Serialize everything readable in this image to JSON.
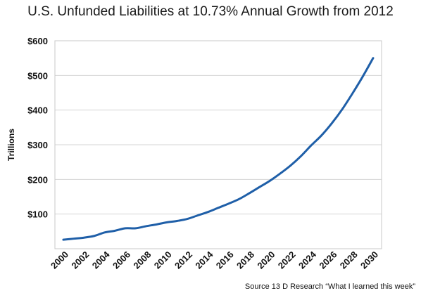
{
  "chart_data": {
    "type": "line",
    "title": "U.S. Unfunded Liabilities at 10.73% Annual Growth from 2012",
    "xlabel": "",
    "ylabel": "Trillions",
    "source": "Source 13 D Research “What I learned this week”",
    "x_ticks": [
      "2000",
      "2002",
      "2004",
      "2006",
      "2008",
      "2010",
      "2012",
      "2014",
      "2016",
      "2018",
      "2020",
      "2022",
      "2024",
      "2026",
      "2028",
      "2030"
    ],
    "y_ticks": [
      "$600",
      "$500",
      "$400",
      "$300",
      "$200",
      "$100"
    ],
    "xlim": [
      1999,
      2031
    ],
    "ylim": [
      0,
      600
    ],
    "grid": "horizontal",
    "series": [
      {
        "color": "#1f5fa8",
        "x": [
          2000,
          2001,
          2002,
          2003,
          2004,
          2005,
          2006,
          2007,
          2008,
          2009,
          2010,
          2011,
          2012,
          2013,
          2014,
          2015,
          2016,
          2017,
          2018,
          2019,
          2020,
          2021,
          2022,
          2023,
          2024,
          2025,
          2026,
          2027,
          2028,
          2029,
          2030
        ],
        "y": [
          26,
          29,
          32,
          37,
          47,
          52,
          59,
          59,
          65,
          70,
          76,
          80,
          86,
          96,
          106,
          118,
          130,
          143,
          160,
          178,
          196,
          217,
          240,
          267,
          298,
          327,
          362,
          402,
          448,
          497,
          550
        ]
      }
    ]
  }
}
